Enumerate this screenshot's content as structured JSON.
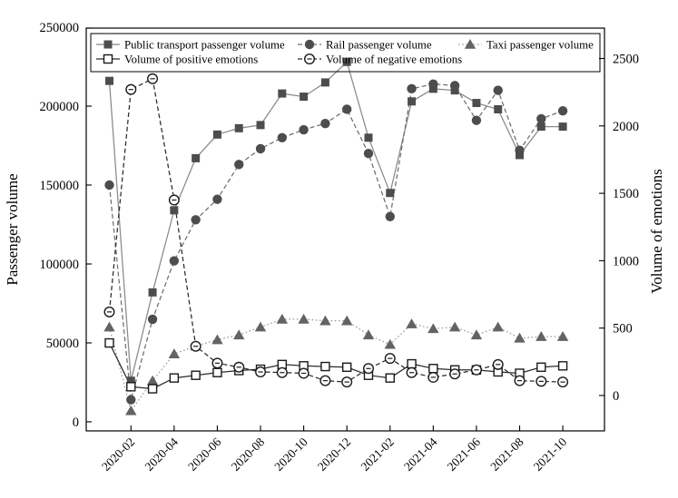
{
  "page": {
    "background": "#ffffff"
  },
  "chart_data": {
    "type": "line",
    "title": "",
    "ylabel_left": "Passenger volume",
    "ylabel_right": "Volume of emotions",
    "x": [
      "2020-01",
      "2020-02",
      "2020-03",
      "2020-04",
      "2020-05",
      "2020-06",
      "2020-07",
      "2020-08",
      "2020-09",
      "2020-10",
      "2020-11",
      "2020-12",
      "2021-01",
      "2021-02",
      "2021-03",
      "2021-04",
      "2021-05",
      "2021-06",
      "2021-07",
      "2021-08",
      "2021-09",
      "2021-10"
    ],
    "x_tick_labels": [
      "2020-02",
      "2020-04",
      "2020-06",
      "2020-08",
      "2020-10",
      "2020-12",
      "2021-02",
      "2021-04",
      "2021-06",
      "2021-08",
      "2021-10"
    ],
    "x_tick_indices": [
      1,
      3,
      5,
      7,
      9,
      11,
      13,
      15,
      17,
      19,
      21
    ],
    "left_axis": {
      "min": 0,
      "max": 250000,
      "ticks": [
        0,
        50000,
        100000,
        150000,
        200000,
        250000
      ],
      "tick_labels": [
        "0",
        "50000",
        "100000",
        "150000",
        "200000",
        "250000"
      ]
    },
    "right_axis": {
      "min": 0,
      "max": 2500,
      "ticks": [
        0,
        500,
        1000,
        1500,
        2000,
        2500
      ],
      "tick_labels": [
        "0",
        "500",
        "1000",
        "1500",
        "2000",
        "2500"
      ]
    },
    "grid": false,
    "legend_position": "top-inside",
    "series": [
      {
        "name": "Public transport passenger volume",
        "axis": "left",
        "marker": "filled-square",
        "line": "solid",
        "marker_color": "#4d4d4d",
        "line_color": "#8a8a8a",
        "values": [
          216000,
          26000,
          82000,
          134000,
          167000,
          182000,
          186000,
          188000,
          208000,
          206000,
          215000,
          228000,
          180000,
          145000,
          203000,
          211000,
          210000,
          202000,
          198000,
          169000,
          187000,
          187000
        ]
      },
      {
        "name": "Rail passenger volume",
        "axis": "left",
        "marker": "filled-circle",
        "line": "dashed",
        "marker_color": "#4d4d4d",
        "line_color": "#6e6e6e",
        "values": [
          150000,
          14000,
          65000,
          102000,
          128000,
          141000,
          163000,
          173000,
          180000,
          185000,
          189000,
          198000,
          170000,
          130000,
          211000,
          214000,
          213000,
          191000,
          210000,
          172000,
          192000,
          197000
        ]
      },
      {
        "name": "Taxi passenger volume",
        "axis": "left",
        "marker": "filled-triangle",
        "line": "dotted",
        "marker_color": "#636363",
        "line_color": "#9a9a9a",
        "values": [
          60000,
          7000,
          26000,
          43000,
          48000,
          52000,
          55000,
          60000,
          65000,
          65000,
          64000,
          64000,
          55000,
          49000,
          62000,
          59000,
          60000,
          55000,
          60000,
          53000,
          54000,
          54000
        ]
      },
      {
        "name": "Volume of positive emotions",
        "axis": "right",
        "marker": "open-square",
        "line": "solid",
        "marker_color": "#1a1a1a",
        "line_color": "#2b2b2b",
        "values": [
          390,
          65,
          50,
          130,
          150,
          170,
          185,
          195,
          230,
          220,
          215,
          210,
          150,
          130,
          235,
          200,
          190,
          190,
          175,
          165,
          210,
          220
        ]
      },
      {
        "name": "Volume of negative emotions",
        "axis": "right",
        "marker": "open-circle",
        "line": "dashed",
        "marker_color": "#1a1a1a",
        "line_color": "#2b2b2b",
        "values": [
          620,
          2270,
          2350,
          1450,
          365,
          240,
          210,
          175,
          170,
          165,
          110,
          100,
          200,
          275,
          170,
          135,
          160,
          190,
          230,
          110,
          105,
          100
        ]
      }
    ],
    "legend": {
      "rows": [
        [
          0,
          1,
          2
        ],
        [
          3,
          4
        ]
      ]
    }
  }
}
